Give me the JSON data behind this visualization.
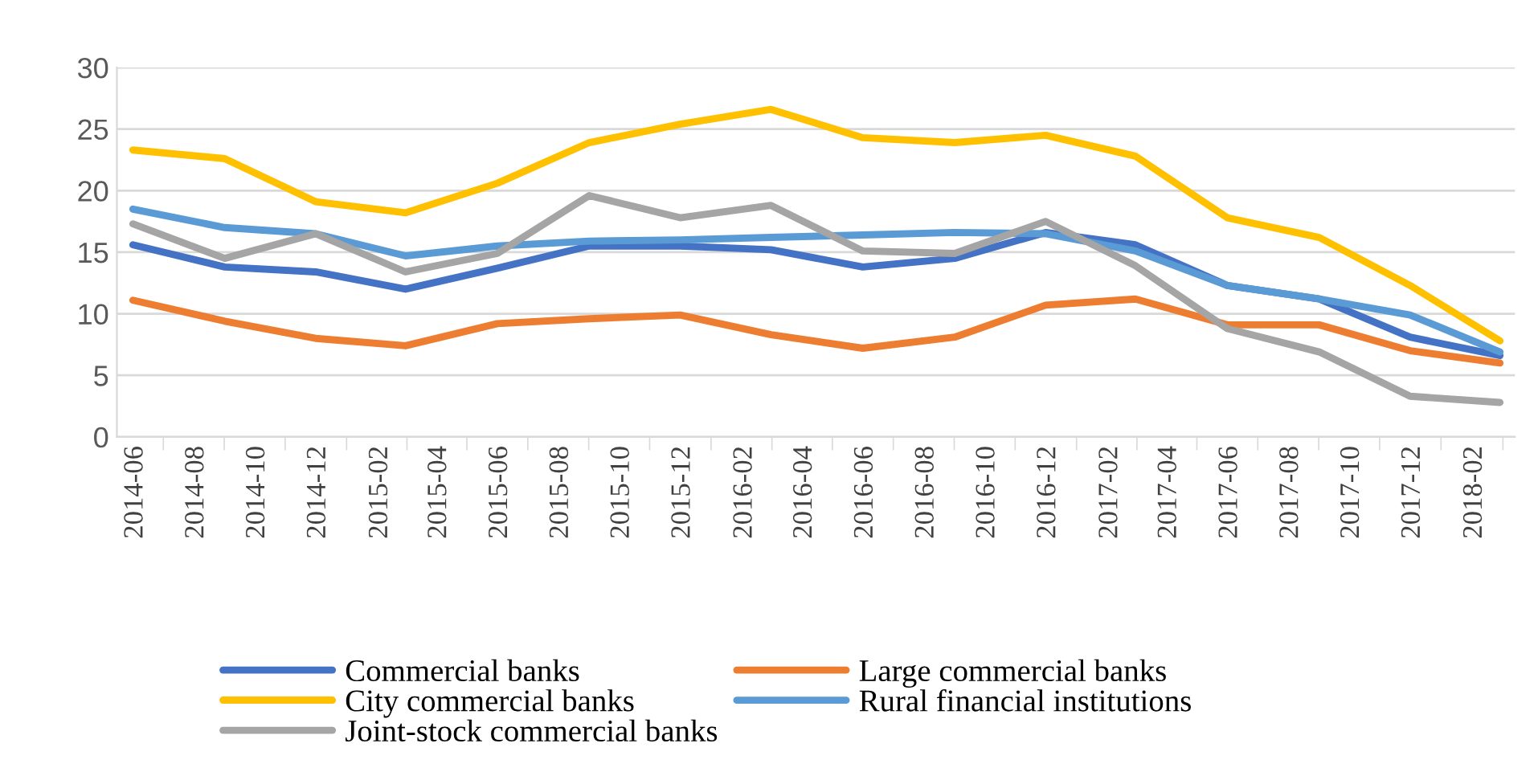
{
  "chart_data": {
    "type": "line",
    "x": [
      "2014-06",
      "2014-09",
      "2014-12",
      "2015-03",
      "2015-06",
      "2015-09",
      "2015-12",
      "2016-03",
      "2016-06",
      "2016-09",
      "2016-12",
      "2017-03",
      "2017-06",
      "2017-09",
      "2017-12",
      "2018-03"
    ],
    "series": [
      {
        "name": "Commercial banks",
        "color": "#4472c4",
        "values": [
          15.6,
          13.8,
          13.4,
          12.0,
          13.7,
          15.5,
          15.5,
          15.2,
          13.8,
          14.5,
          16.6,
          15.6,
          12.3,
          11.2,
          8.1,
          6.6
        ]
      },
      {
        "name": "Large commercial banks",
        "color": "#ed7d31",
        "values": [
          11.1,
          9.4,
          8.0,
          7.4,
          9.2,
          9.6,
          9.9,
          8.3,
          7.2,
          8.1,
          10.7,
          11.2,
          9.1,
          9.1,
          7.0,
          6.0
        ]
      },
      {
        "name": "City commercial banks",
        "color": "#ffc000",
        "values": [
          23.3,
          22.6,
          19.1,
          18.2,
          20.6,
          23.9,
          25.4,
          26.6,
          24.3,
          23.9,
          24.5,
          22.8,
          17.8,
          16.2,
          12.3,
          7.8
        ]
      },
      {
        "name": "Rural financial institutions",
        "color": "#5b9bd5",
        "values": [
          18.5,
          17.0,
          16.5,
          14.7,
          15.5,
          15.9,
          16.0,
          16.2,
          16.4,
          16.6,
          16.5,
          15.1,
          12.3,
          11.2,
          9.9,
          6.9
        ]
      },
      {
        "name": "Joint-stock commercial banks",
        "color": "#a5a5a5",
        "values": [
          17.3,
          14.5,
          16.5,
          13.4,
          14.9,
          19.6,
          17.8,
          18.8,
          15.1,
          14.9,
          17.5,
          13.9,
          8.8,
          6.9,
          3.3,
          2.8
        ]
      }
    ],
    "xlim": [
      "2014-05-16",
      "2018-03-16"
    ],
    "xticks": [
      "2014-06",
      "2014-08",
      "2014-10",
      "2014-12",
      "2015-02",
      "2015-04",
      "2015-06",
      "2015-08",
      "2015-10",
      "2015-12",
      "2016-02",
      "2016-04",
      "2016-06",
      "2016-08",
      "2016-10",
      "2016-12",
      "2017-02",
      "2017-04",
      "2017-06",
      "2017-08",
      "2017-10",
      "2017-12",
      "2018-02"
    ],
    "ylim": [
      0,
      30
    ],
    "yticks": [
      0,
      5,
      10,
      15,
      20,
      25,
      30
    ],
    "grid": "y",
    "legend": "bottom",
    "marker": "none",
    "line_style": "solid"
  }
}
